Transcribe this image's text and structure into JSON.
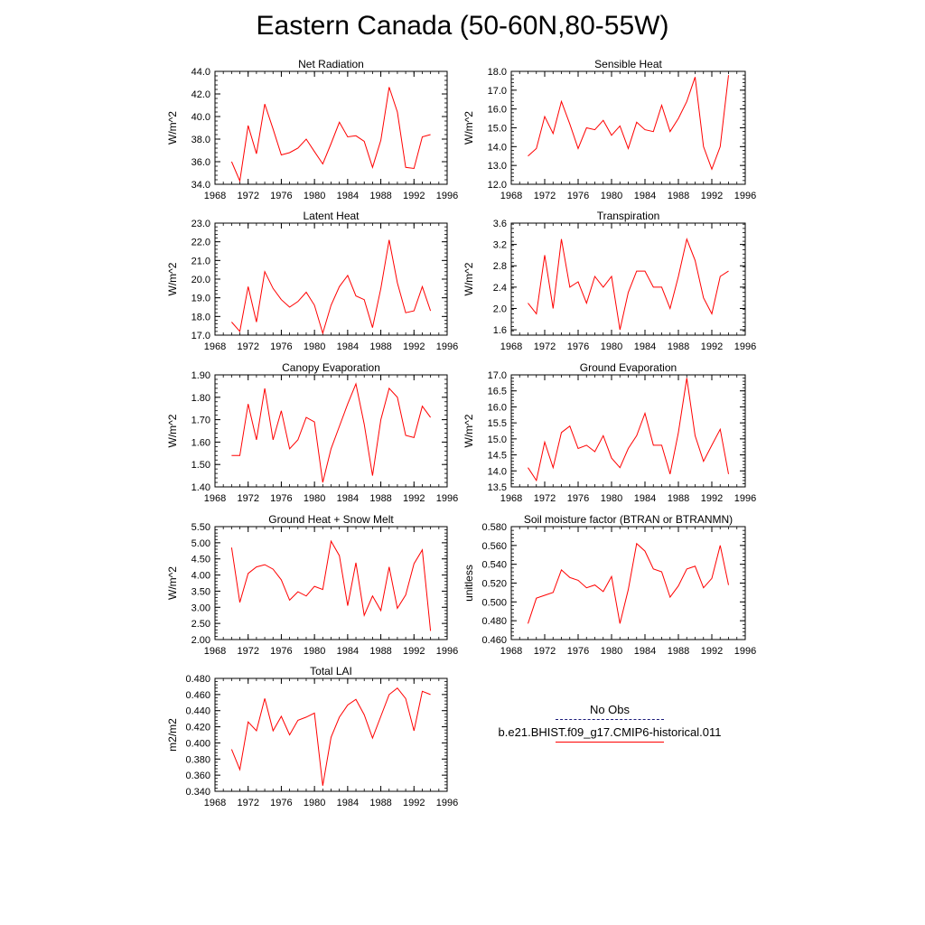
{
  "page": {
    "title": "Eastern Canada (50-60N,80-55W)"
  },
  "legend": {
    "obs_label": "No Obs",
    "model_label": "b.e21.BHIST.f09_g17.CMIP6-historical.011",
    "obs_color": "#1a1a7a",
    "model_color": "#ff0000"
  },
  "chart_data": [
    {
      "type": "line",
      "title": "Net Radiation",
      "xlabel": "",
      "ylabel": "W/m^2",
      "xlim": [
        1968,
        1996
      ],
      "ylim": [
        34.0,
        44.0
      ],
      "decimals": 1,
      "xticks": [
        1968,
        1972,
        1976,
        1980,
        1984,
        1988,
        1992,
        1996
      ],
      "yticks": [
        34.0,
        36.0,
        38.0,
        40.0,
        42.0,
        44.0
      ],
      "series": [
        {
          "color": "#ff0000",
          "x": [
            1970,
            1971,
            1972,
            1973,
            1974,
            1975,
            1976,
            1977,
            1978,
            1979,
            1980,
            1981,
            1982,
            1983,
            1984,
            1985,
            1986,
            1987,
            1988,
            1989,
            1990,
            1991,
            1992,
            1993,
            1994
          ],
          "y": [
            36.0,
            34.3,
            39.2,
            36.7,
            41.1,
            38.9,
            36.6,
            36.8,
            37.2,
            38.0,
            36.9,
            35.8,
            37.6,
            39.5,
            38.2,
            38.3,
            37.8,
            35.5,
            37.9,
            42.6,
            40.4,
            35.5,
            35.4,
            38.2,
            38.4
          ]
        }
      ]
    },
    {
      "type": "line",
      "title": "Sensible Heat",
      "xlabel": "",
      "ylabel": "W/m^2",
      "xlim": [
        1968,
        1996
      ],
      "ylim": [
        12.0,
        18.0
      ],
      "decimals": 1,
      "xticks": [
        1968,
        1972,
        1976,
        1980,
        1984,
        1988,
        1992,
        1996
      ],
      "yticks": [
        12.0,
        13.0,
        14.0,
        15.0,
        16.0,
        17.0,
        18.0
      ],
      "series": [
        {
          "color": "#ff0000",
          "x": [
            1970,
            1971,
            1972,
            1973,
            1974,
            1975,
            1976,
            1977,
            1978,
            1979,
            1980,
            1981,
            1982,
            1983,
            1984,
            1985,
            1986,
            1987,
            1988,
            1989,
            1990,
            1991,
            1992,
            1993,
            1994
          ],
          "y": [
            13.5,
            13.9,
            15.6,
            14.7,
            16.4,
            15.2,
            13.9,
            15.0,
            14.9,
            15.4,
            14.6,
            15.1,
            13.9,
            15.3,
            14.9,
            14.8,
            16.2,
            14.8,
            15.5,
            16.4,
            17.7,
            14.0,
            12.8,
            14.0,
            17.8
          ]
        }
      ]
    },
    {
      "type": "line",
      "title": "Latent Heat",
      "xlabel": "",
      "ylabel": "W/m^2",
      "xlim": [
        1968,
        1996
      ],
      "ylim": [
        17.0,
        23.0
      ],
      "decimals": 1,
      "xticks": [
        1968,
        1972,
        1976,
        1980,
        1984,
        1988,
        1992,
        1996
      ],
      "yticks": [
        17.0,
        18.0,
        19.0,
        20.0,
        21.0,
        22.0,
        23.0
      ],
      "series": [
        {
          "color": "#ff0000",
          "x": [
            1970,
            1971,
            1972,
            1973,
            1974,
            1975,
            1976,
            1977,
            1978,
            1979,
            1980,
            1981,
            1982,
            1983,
            1984,
            1985,
            1986,
            1987,
            1988,
            1989,
            1990,
            1991,
            1992,
            1993,
            1994
          ],
          "y": [
            17.7,
            17.2,
            19.6,
            17.7,
            20.4,
            19.5,
            18.9,
            18.5,
            18.8,
            19.3,
            18.6,
            17.1,
            18.6,
            19.6,
            20.2,
            19.1,
            18.9,
            17.4,
            19.5,
            22.1,
            19.8,
            18.2,
            18.3,
            19.6,
            18.3
          ]
        }
      ]
    },
    {
      "type": "line",
      "title": "Transpiration",
      "xlabel": "",
      "ylabel": "W/m^2",
      "xlim": [
        1968,
        1996
      ],
      "ylim": [
        1.5,
        3.6
      ],
      "decimals": 1,
      "xticks": [
        1968,
        1972,
        1976,
        1980,
        1984,
        1988,
        1992,
        1996
      ],
      "yticks": [
        1.6,
        2.0,
        2.4,
        2.8,
        3.2,
        3.6
      ],
      "series": [
        {
          "color": "#ff0000",
          "x": [
            1970,
            1971,
            1972,
            1973,
            1974,
            1975,
            1976,
            1977,
            1978,
            1979,
            1980,
            1981,
            1982,
            1983,
            1984,
            1985,
            1986,
            1987,
            1988,
            1989,
            1990,
            1991,
            1992,
            1993,
            1994
          ],
          "y": [
            2.1,
            1.9,
            3.0,
            2.0,
            3.3,
            2.4,
            2.5,
            2.1,
            2.6,
            2.4,
            2.6,
            1.6,
            2.3,
            2.7,
            2.7,
            2.4,
            2.4,
            2.0,
            2.6,
            3.3,
            2.9,
            2.2,
            1.9,
            2.6,
            2.7
          ]
        }
      ]
    },
    {
      "type": "line",
      "title": "Canopy Evaporation",
      "xlabel": "",
      "ylabel": "W/m^2",
      "xlim": [
        1968,
        1996
      ],
      "ylim": [
        1.4,
        1.9
      ],
      "decimals": 2,
      "xticks": [
        1968,
        1972,
        1976,
        1980,
        1984,
        1988,
        1992,
        1996
      ],
      "yticks": [
        1.4,
        1.5,
        1.6,
        1.7,
        1.8,
        1.9
      ],
      "series": [
        {
          "color": "#ff0000",
          "x": [
            1970,
            1971,
            1972,
            1973,
            1974,
            1975,
            1976,
            1977,
            1978,
            1979,
            1980,
            1981,
            1982,
            1983,
            1984,
            1985,
            1986,
            1987,
            1988,
            1989,
            1990,
            1991,
            1992,
            1993,
            1994
          ],
          "y": [
            1.54,
            1.54,
            1.77,
            1.61,
            1.84,
            1.61,
            1.74,
            1.57,
            1.61,
            1.71,
            1.69,
            1.42,
            1.57,
            1.67,
            1.77,
            1.86,
            1.68,
            1.45,
            1.7,
            1.84,
            1.8,
            1.63,
            1.62,
            1.76,
            1.71
          ]
        }
      ]
    },
    {
      "type": "line",
      "title": "Ground Evaporation",
      "xlabel": "",
      "ylabel": "W/m^2",
      "xlim": [
        1968,
        1996
      ],
      "ylim": [
        13.5,
        17.0
      ],
      "decimals": 1,
      "xticks": [
        1968,
        1972,
        1976,
        1980,
        1984,
        1988,
        1992,
        1996
      ],
      "yticks": [
        13.5,
        14.0,
        14.5,
        15.0,
        15.5,
        16.0,
        16.5,
        17.0
      ],
      "series": [
        {
          "color": "#ff0000",
          "x": [
            1970,
            1971,
            1972,
            1973,
            1974,
            1975,
            1976,
            1977,
            1978,
            1979,
            1980,
            1981,
            1982,
            1983,
            1984,
            1985,
            1986,
            1987,
            1988,
            1989,
            1990,
            1991,
            1992,
            1993,
            1994
          ],
          "y": [
            14.1,
            13.7,
            14.9,
            14.1,
            15.2,
            15.4,
            14.7,
            14.8,
            14.6,
            15.1,
            14.4,
            14.1,
            14.7,
            15.1,
            15.8,
            14.8,
            14.8,
            13.9,
            15.2,
            16.9,
            15.1,
            14.3,
            14.8,
            15.3,
            13.9
          ]
        }
      ]
    },
    {
      "type": "line",
      "title": "Ground Heat + Snow Melt",
      "xlabel": "",
      "ylabel": "W/m^2",
      "xlim": [
        1968,
        1996
      ],
      "ylim": [
        2.0,
        5.5
      ],
      "decimals": 2,
      "xticks": [
        1968,
        1972,
        1976,
        1980,
        1984,
        1988,
        1992,
        1996
      ],
      "yticks": [
        2.0,
        2.5,
        3.0,
        3.5,
        4.0,
        4.5,
        5.0,
        5.5
      ],
      "series": [
        {
          "color": "#ff0000",
          "x": [
            1970,
            1971,
            1972,
            1973,
            1974,
            1975,
            1976,
            1977,
            1978,
            1979,
            1980,
            1981,
            1982,
            1983,
            1984,
            1985,
            1986,
            1987,
            1988,
            1989,
            1990,
            1991,
            1992,
            1993,
            1994
          ],
          "y": [
            4.85,
            3.15,
            4.05,
            4.25,
            4.32,
            4.18,
            3.85,
            3.22,
            3.48,
            3.35,
            3.65,
            3.55,
            5.05,
            4.6,
            3.05,
            4.38,
            2.75,
            3.35,
            2.9,
            4.25,
            2.97,
            3.38,
            4.35,
            4.78,
            2.27
          ]
        }
      ]
    },
    {
      "type": "line",
      "title": "Soil moisture factor (BTRAN or BTRANMN)",
      "xlabel": "",
      "ylabel": "unitless",
      "xlim": [
        1968,
        1996
      ],
      "ylim": [
        0.46,
        0.58
      ],
      "decimals": 3,
      "xticks": [
        1968,
        1972,
        1976,
        1980,
        1984,
        1988,
        1992,
        1996
      ],
      "yticks": [
        0.46,
        0.48,
        0.5,
        0.52,
        0.54,
        0.56,
        0.58
      ],
      "series": [
        {
          "color": "#ff0000",
          "x": [
            1970,
            1971,
            1972,
            1973,
            1974,
            1975,
            1976,
            1977,
            1978,
            1979,
            1980,
            1981,
            1982,
            1983,
            1984,
            1985,
            1986,
            1987,
            1988,
            1989,
            1990,
            1991,
            1992,
            1993,
            1994
          ],
          "y": [
            0.477,
            0.504,
            0.507,
            0.51,
            0.534,
            0.526,
            0.523,
            0.515,
            0.518,
            0.511,
            0.527,
            0.477,
            0.513,
            0.562,
            0.554,
            0.535,
            0.532,
            0.505,
            0.517,
            0.535,
            0.538,
            0.515,
            0.525,
            0.56,
            0.518
          ]
        }
      ]
    },
    {
      "type": "line",
      "title": "Total LAI",
      "xlabel": "",
      "ylabel": "m2/m2",
      "xlim": [
        1968,
        1996
      ],
      "ylim": [
        0.34,
        0.48
      ],
      "decimals": 3,
      "xticks": [
        1968,
        1972,
        1976,
        1980,
        1984,
        1988,
        1992,
        1996
      ],
      "yticks": [
        0.34,
        0.36,
        0.38,
        0.4,
        0.42,
        0.44,
        0.46,
        0.48
      ],
      "series": [
        {
          "color": "#ff0000",
          "x": [
            1970,
            1971,
            1972,
            1973,
            1974,
            1975,
            1976,
            1977,
            1978,
            1979,
            1980,
            1981,
            1982,
            1983,
            1984,
            1985,
            1986,
            1987,
            1988,
            1989,
            1990,
            1991,
            1992,
            1993,
            1994
          ],
          "y": [
            0.392,
            0.367,
            0.426,
            0.415,
            0.455,
            0.415,
            0.433,
            0.41,
            0.428,
            0.432,
            0.437,
            0.347,
            0.407,
            0.432,
            0.447,
            0.454,
            0.435,
            0.406,
            0.433,
            0.46,
            0.468,
            0.455,
            0.415,
            0.464,
            0.46
          ]
        }
      ]
    }
  ]
}
